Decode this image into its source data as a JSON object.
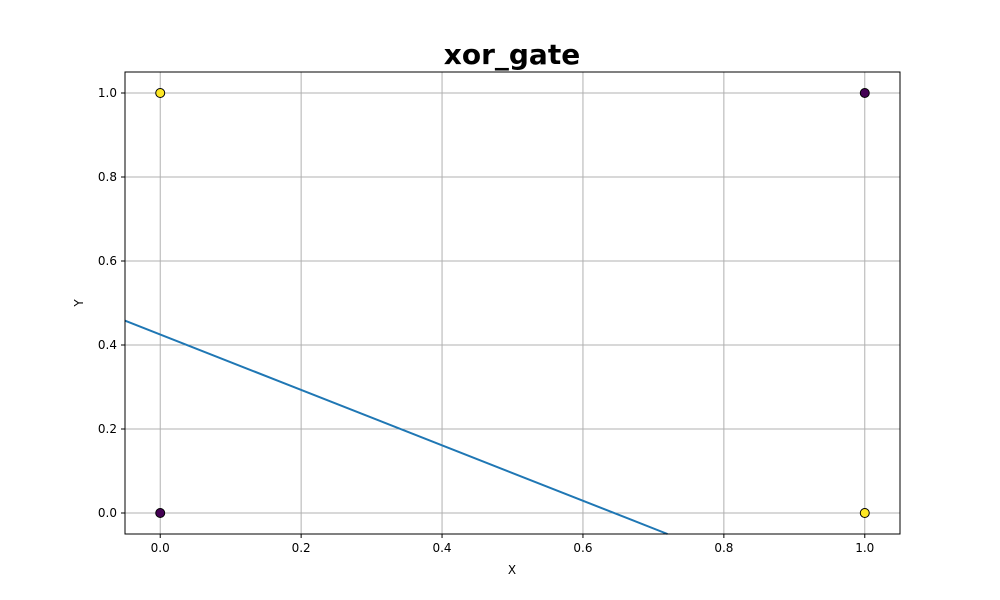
{
  "chart_data": {
    "type": "scatter",
    "title": "xor_gate",
    "xlabel": "X",
    "ylabel": "Y",
    "xlim": [
      -0.05,
      1.05
    ],
    "ylim": [
      -0.05,
      1.05
    ],
    "xticks": [
      "0.0",
      "0.2",
      "0.4",
      "0.6",
      "0.8",
      "1.0"
    ],
    "yticks": [
      "0.0",
      "0.2",
      "0.4",
      "0.6",
      "0.8",
      "1.0"
    ],
    "grid": true,
    "points": [
      {
        "x": 0,
        "y": 0,
        "class": 0
      },
      {
        "x": 0,
        "y": 1,
        "class": 1
      },
      {
        "x": 1,
        "y": 0,
        "class": 1
      },
      {
        "x": 1,
        "y": 1,
        "class": 0
      }
    ],
    "class_colors": {
      "0": "#440154",
      "1": "#fde725"
    },
    "decision_line": {
      "x": [
        -0.05,
        0.72
      ],
      "y": [
        0.458,
        -0.05
      ],
      "color": "#1f77b4"
    }
  }
}
